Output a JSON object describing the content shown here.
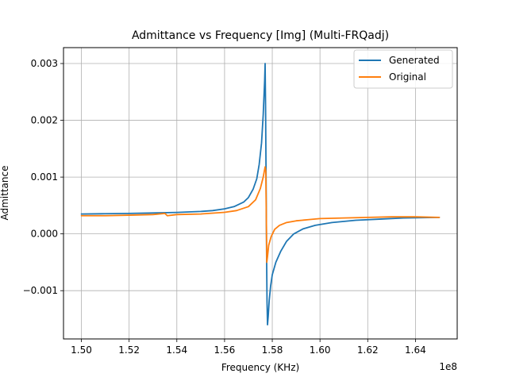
{
  "chart_data": {
    "type": "line",
    "title": "Admittance vs Frequency [Img] (Multi-FRQadj)",
    "xlabel": "Frequency (KHz)",
    "ylabel": "Admittance",
    "x_offset_label": "1e8",
    "xlim": [
      149250000,
      165750000
    ],
    "ylim": [
      -0.00185,
      0.00328
    ],
    "x_ticks": [
      150000000,
      152000000,
      154000000,
      156000000,
      158000000,
      160000000,
      162000000,
      164000000
    ],
    "x_tick_labels": [
      "1.50",
      "1.52",
      "1.54",
      "1.56",
      "1.58",
      "1.60",
      "1.62",
      "1.64"
    ],
    "y_ticks": [
      -0.001,
      0.0,
      0.001,
      0.002,
      0.003
    ],
    "y_tick_labels": [
      "−0.001",
      "0.000",
      "0.001",
      "0.002",
      "0.003"
    ],
    "grid": true,
    "legend_position": "top-right",
    "series": [
      {
        "name": "Generated",
        "color": "#1f77b4",
        "points": [
          [
            150000000,
            0.00035
          ],
          [
            151000000,
            0.000355
          ],
          [
            152000000,
            0.00036
          ],
          [
            153000000,
            0.000368
          ],
          [
            154000000,
            0.000378
          ],
          [
            155000000,
            0.000395
          ],
          [
            155500000,
            0.00041
          ],
          [
            156000000,
            0.00044
          ],
          [
            156400000,
            0.00048
          ],
          [
            156800000,
            0.00056
          ],
          [
            157000000,
            0.00064
          ],
          [
            157200000,
            0.00079
          ],
          [
            157350000,
            0.00097
          ],
          [
            157450000,
            0.00122
          ],
          [
            157550000,
            0.0016
          ],
          [
            157620000,
            0.0021
          ],
          [
            157680000,
            0.0027
          ],
          [
            157700000,
            0.003
          ],
          [
            157720000,
            0.0022
          ],
          [
            157740000,
            0.001
          ],
          [
            157760000,
            -0.0003
          ],
          [
            157780000,
            -0.0012
          ],
          [
            157800000,
            -0.0016
          ],
          [
            157830000,
            -0.00145
          ],
          [
            157870000,
            -0.00118
          ],
          [
            157930000,
            -0.00092
          ],
          [
            158000000,
            -0.00072
          ],
          [
            158150000,
            -0.0005
          ],
          [
            158350000,
            -0.00031
          ],
          [
            158600000,
            -0.00013
          ],
          [
            158900000,
            0.0
          ],
          [
            159300000,
            9e-05
          ],
          [
            159800000,
            0.00015
          ],
          [
            160500000,
            0.0002
          ],
          [
            161500000,
            0.00024
          ],
          [
            162500000,
            0.00026
          ],
          [
            163500000,
            0.00028
          ],
          [
            165000000,
            0.00029
          ]
        ]
      },
      {
        "name": "Original",
        "color": "#ff7f0e",
        "points": [
          [
            150000000,
            0.00032
          ],
          [
            151000000,
            0.00032
          ],
          [
            152000000,
            0.00033
          ],
          [
            153000000,
            0.00034
          ],
          [
            153500000,
            0.00036
          ],
          [
            153600000,
            0.00032
          ],
          [
            154000000,
            0.00034
          ],
          [
            155000000,
            0.00035
          ],
          [
            156000000,
            0.00038
          ],
          [
            156500000,
            0.00041
          ],
          [
            157000000,
            0.00048
          ],
          [
            157300000,
            0.0006
          ],
          [
            157500000,
            0.0008
          ],
          [
            157620000,
            0.001
          ],
          [
            157700000,
            0.00118
          ],
          [
            157730000,
            0.0011
          ],
          [
            157750000,
            0.0003
          ],
          [
            157770000,
            -0.0005
          ],
          [
            157800000,
            -0.0004
          ],
          [
            157850000,
            -0.0002
          ],
          [
            157950000,
            -5e-05
          ],
          [
            158100000,
            8e-05
          ],
          [
            158300000,
            0.00015
          ],
          [
            158600000,
            0.0002
          ],
          [
            159000000,
            0.00023
          ],
          [
            159500000,
            0.00025
          ],
          [
            160000000,
            0.00027
          ],
          [
            161000000,
            0.00028
          ],
          [
            162000000,
            0.00029
          ],
          [
            163000000,
            0.0003
          ],
          [
            164000000,
            0.0003
          ],
          [
            165000000,
            0.00029
          ]
        ]
      }
    ]
  }
}
